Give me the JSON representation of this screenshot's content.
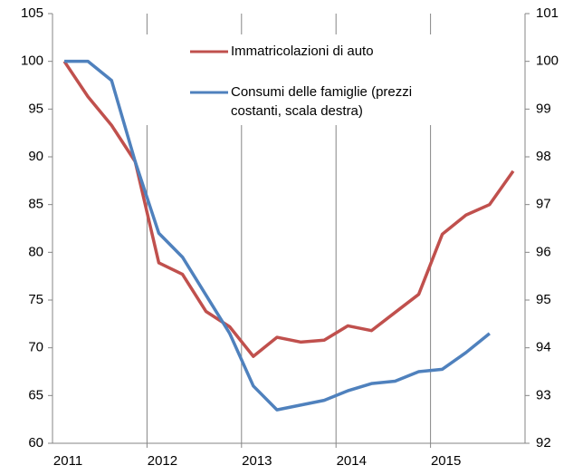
{
  "chart_data": {
    "type": "line",
    "categories": [
      "2011",
      null,
      null,
      null,
      "2012",
      null,
      null,
      null,
      "2013",
      null,
      null,
      null,
      "2014",
      null,
      null,
      null,
      "2015",
      null,
      null,
      null
    ],
    "series": [
      {
        "name": "Immatricolazioni di auto",
        "color": "#c0504d",
        "axis": "y",
        "values": [
          100,
          96.3,
          93.3,
          89.5,
          78.9,
          77.7,
          73.8,
          72.2,
          69.1,
          71.1,
          70.6,
          70.8,
          72.3,
          71.8,
          73.7,
          75.6,
          81.9,
          83.9,
          85.0,
          88.5
        ]
      },
      {
        "name": "Consumi delle famiglie (prezzi costanti, scala destra)",
        "color": "#4f81bd",
        "axis": "y2",
        "values": [
          100,
          100,
          99.6,
          97.9,
          96.4,
          95.9,
          95.1,
          94.3,
          93.2,
          92.7,
          92.8,
          92.9,
          93.1,
          93.25,
          93.3,
          93.5,
          93.55,
          93.9,
          94.3,
          null
        ]
      }
    ],
    "ylim": [
      60,
      105
    ],
    "yticks": [
      60,
      65,
      70,
      75,
      80,
      85,
      90,
      95,
      100,
      105
    ],
    "y2lim": [
      92,
      101
    ],
    "y2ticks": [
      92,
      93,
      94,
      95,
      96,
      97,
      98,
      99,
      100,
      101
    ],
    "grid": true
  }
}
